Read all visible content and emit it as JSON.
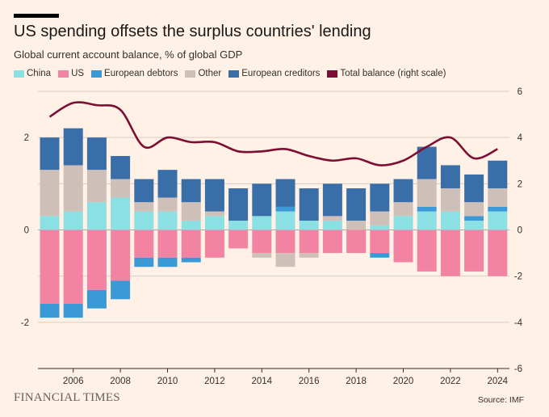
{
  "header": {
    "title": "US spending offsets the surplus countries' lending",
    "subtitle": "Global current account balance, % of global GDP"
  },
  "footer": {
    "brand": "FINANCIAL TIMES",
    "source": "Source: IMF"
  },
  "colors": {
    "China": "#8ae0e2",
    "US": "#f383a2",
    "European debtors": "#3b9ad5",
    "Other": "#cec0b8",
    "European creditors": "#3a6ea8",
    "Total balance (right scale)": "#7d0e33",
    "background": "#fff1e5",
    "grid": "#d9ccc1"
  },
  "chart_data": {
    "type": "bar",
    "stacked": true,
    "x": [
      2005,
      2006,
      2007,
      2008,
      2009,
      2010,
      2011,
      2012,
      2013,
      2014,
      2015,
      2016,
      2017,
      2018,
      2019,
      2020,
      2021,
      2022,
      2023,
      2024
    ],
    "series": [
      {
        "name": "China",
        "values": [
          0.3,
          0.4,
          0.6,
          0.7,
          0.4,
          0.4,
          0.2,
          0.3,
          0.2,
          0.3,
          0.4,
          0.2,
          0.2,
          0.0,
          0.1,
          0.3,
          0.4,
          0.4,
          0.2,
          0.4
        ]
      },
      {
        "name": "US",
        "values": [
          -1.6,
          -1.6,
          -1.3,
          -1.1,
          -0.6,
          -0.6,
          -0.6,
          -0.6,
          -0.4,
          -0.5,
          -0.5,
          -0.5,
          -0.5,
          -0.5,
          -0.5,
          -0.7,
          -0.9,
          -1.0,
          -0.9,
          -1.0
        ]
      },
      {
        "name": "European debtors",
        "values": [
          -0.3,
          -0.3,
          -0.4,
          -0.4,
          -0.2,
          -0.2,
          -0.1,
          0,
          0,
          0,
          0.1,
          0,
          0,
          0,
          -0.1,
          0,
          0.1,
          0,
          0.1,
          0.1
        ]
      },
      {
        "name": "Other",
        "values": [
          1.0,
          1.0,
          0.7,
          0.4,
          0.2,
          0.3,
          0.4,
          0.1,
          0,
          -0.1,
          -0.3,
          -0.1,
          0.1,
          0.2,
          0.3,
          0.3,
          0.6,
          0.5,
          0.3,
          0.4
        ]
      },
      {
        "name": "European creditors",
        "values": [
          0.7,
          0.8,
          0.7,
          0.5,
          0.5,
          0.6,
          0.5,
          0.7,
          0.7,
          0.7,
          0.6,
          0.7,
          0.7,
          0.7,
          0.6,
          0.5,
          0.7,
          0.5,
          0.6,
          0.6
        ]
      }
    ],
    "line_series": {
      "name": "Total balance (right scale)",
      "values": [
        4.9,
        5.5,
        5.4,
        5.2,
        3.6,
        4.0,
        3.8,
        3.8,
        3.4,
        3.4,
        3.5,
        3.2,
        3.0,
        3.1,
        2.8,
        3.0,
        3.6,
        4.0,
        3.1,
        3.5
      ]
    },
    "ylim_left": [
      -3,
      3
    ],
    "ylim_right": [
      -6,
      6
    ],
    "yticks_left": [
      -2,
      0,
      2
    ],
    "yticks_right": [
      -6,
      -4,
      -2,
      0,
      2,
      4,
      6
    ],
    "xticks": [
      2006,
      2008,
      2010,
      2012,
      2014,
      2016,
      2018,
      2020,
      2022,
      2024
    ],
    "legend": [
      "China",
      "US",
      "European debtors",
      "Other",
      "European creditors",
      "Total balance (right scale)"
    ],
    "legend_position": "top",
    "grid": true
  }
}
